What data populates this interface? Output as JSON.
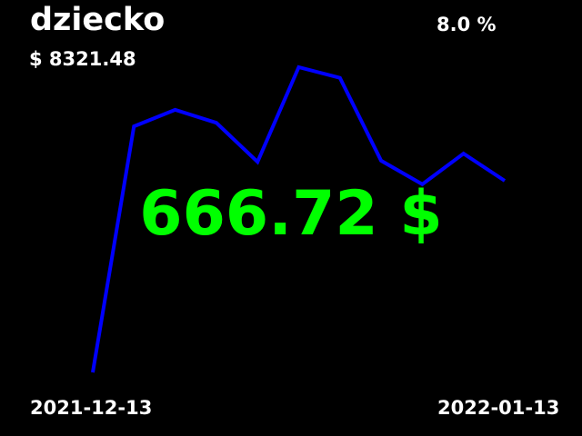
{
  "header": {
    "title": "dziecko",
    "total": "$ 8321.48",
    "change": "8.0 %"
  },
  "main": {
    "value": "666.72 $",
    "value_color": "#00ff00"
  },
  "footer": {
    "date_start": "2021-12-13",
    "date_end": "2022-01-13"
  },
  "chart_data": {
    "type": "line",
    "title": "dziecko",
    "xlabel": "",
    "ylabel": "",
    "x": [
      "2021-12-13",
      "",
      "",
      "",
      "",
      "",
      "",
      "",
      "",
      "",
      "2022-01-13"
    ],
    "series": [
      {
        "color": "#0000ff",
        "values": [
          0,
          20.8,
          22.2,
          21.1,
          17.8,
          25.8,
          24.9,
          17.9,
          15.9,
          18.5,
          16.2
        ]
      }
    ],
    "ylim": [
      0,
      25.8
    ],
    "grid": false,
    "legend": "none"
  }
}
